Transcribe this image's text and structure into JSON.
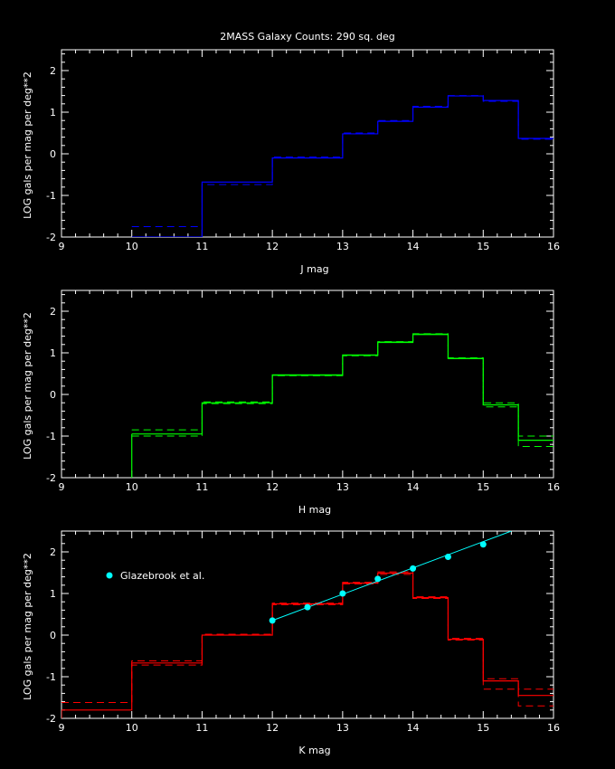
{
  "title": "2MASS Galaxy Counts:  290 sq. deg",
  "chart_data": [
    {
      "type": "line",
      "band": "J",
      "color": "#0000ff",
      "xlabel": "J mag",
      "ylabel": "LOG gals per mag per deg**2",
      "xlim": [
        9,
        16
      ],
      "ylim": [
        -2,
        2.5
      ],
      "xticks": [
        "9",
        "10",
        "11",
        "12",
        "13",
        "14",
        "15",
        "16"
      ],
      "yticks": [
        "-2",
        "-1",
        "0",
        "1",
        "2"
      ],
      "bin_edges": [
        10,
        11,
        12,
        13,
        13.5,
        14,
        14.5,
        15,
        15.5,
        16
      ],
      "solid": [
        -2.0,
        -0.68,
        -0.1,
        0.48,
        0.78,
        1.12,
        1.39,
        1.28,
        0.37
      ],
      "dashed": [
        -1.75,
        -0.74,
        -0.08,
        0.5,
        0.8,
        1.14,
        1.4,
        1.26,
        0.35
      ],
      "points": []
    },
    {
      "type": "line",
      "band": "H",
      "color": "#00ff00",
      "xlabel": "H mag",
      "ylabel": "LOG gals per mag per deg**2",
      "xlim": [
        9,
        16
      ],
      "ylim": [
        -2,
        2.5
      ],
      "xticks": [
        "9",
        "10",
        "11",
        "12",
        "13",
        "14",
        "15",
        "16"
      ],
      "yticks": [
        "-2",
        "-1",
        "0",
        "1",
        "2"
      ],
      "bin_edges": [
        10,
        11,
        12,
        13,
        13.5,
        14,
        14.5,
        15,
        15.5,
        16
      ],
      "solid": [
        -0.95,
        -0.2,
        0.47,
        0.95,
        1.25,
        1.44,
        0.86,
        -0.25,
        -1.1
      ],
      "dashed": [
        -0.85,
        -0.22,
        0.45,
        0.93,
        1.27,
        1.46,
        0.88,
        -0.2,
        -1.25
      ],
      "dashed2": [
        -1.0,
        -0.18,
        0.46,
        0.94,
        1.26,
        1.45,
        0.87,
        -0.3,
        -1.0
      ],
      "points": []
    },
    {
      "type": "line",
      "band": "K",
      "color": "#ff0000",
      "xlabel": "K mag",
      "ylabel": "LOG gals per mag per deg**2",
      "xlim": [
        9,
        16
      ],
      "ylim": [
        -2,
        2.5
      ],
      "xticks": [
        "9",
        "10",
        "11",
        "12",
        "13",
        "14",
        "15",
        "16"
      ],
      "yticks": [
        "-2",
        "-1",
        "0",
        "1",
        "2"
      ],
      "bin_edges": [
        9,
        10,
        11,
        12,
        13,
        13.5,
        14,
        14.5,
        15,
        15.5,
        16
      ],
      "solid": [
        -1.8,
        -0.67,
        0.0,
        0.75,
        1.25,
        1.49,
        0.9,
        -0.1,
        -1.1,
        -1.45
      ],
      "dashed": [
        -1.62,
        -0.72,
        0.02,
        0.77,
        1.27,
        1.46,
        0.92,
        -0.12,
        -1.05,
        -1.3
      ],
      "dashed2": [
        -1.62,
        -0.62,
        0.02,
        0.73,
        1.23,
        1.52,
        0.88,
        -0.08,
        -1.3,
        -1.7
      ],
      "points": [
        {
          "x": 12.0,
          "y": 0.35
        },
        {
          "x": 12.5,
          "y": 0.67
        },
        {
          "x": 13.0,
          "y": 1.0
        },
        {
          "x": 13.5,
          "y": 1.35
        },
        {
          "x": 14.0,
          "y": 1.6
        },
        {
          "x": 14.5,
          "y": 1.88
        },
        {
          "x": 15.0,
          "y": 2.18
        }
      ],
      "fit_line": [
        {
          "x": 12.0,
          "y": 0.35
        },
        {
          "x": 15.4,
          "y": 2.5
        }
      ],
      "points_color": "#00ffff",
      "legend": "Glazebrook et al."
    }
  ]
}
